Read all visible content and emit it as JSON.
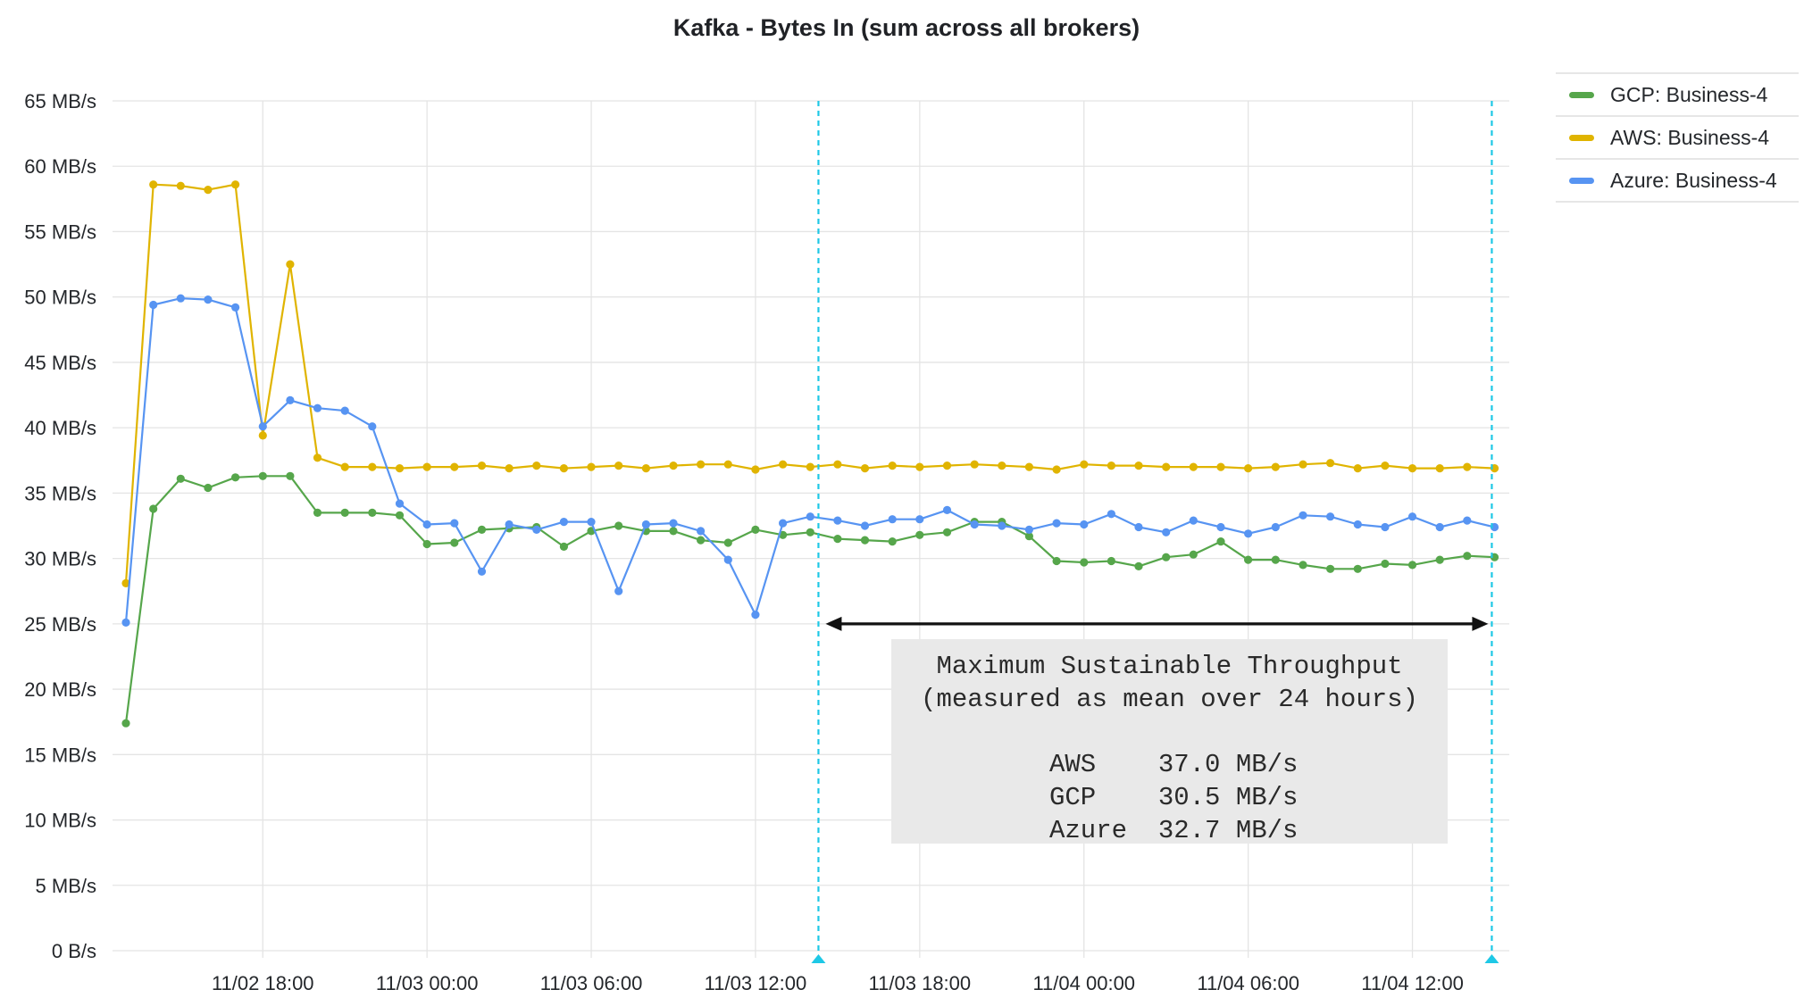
{
  "chart_data": {
    "type": "line",
    "title": "Kafka - Bytes In (sum across all brokers)",
    "xlabel": "",
    "ylabel": "",
    "ylim": [
      0,
      65
    ],
    "yunit": "MB/s",
    "grid": true,
    "legend_position": "right",
    "y_ticks": [
      {
        "value": 0,
        "label": "0 B/s"
      },
      {
        "value": 5,
        "label": "5 MB/s"
      },
      {
        "value": 10,
        "label": "10 MB/s"
      },
      {
        "value": 15,
        "label": "15 MB/s"
      },
      {
        "value": 20,
        "label": "20 MB/s"
      },
      {
        "value": 25,
        "label": "25 MB/s"
      },
      {
        "value": 30,
        "label": "30 MB/s"
      },
      {
        "value": 35,
        "label": "35 MB/s"
      },
      {
        "value": 40,
        "label": "40 MB/s"
      },
      {
        "value": 45,
        "label": "45 MB/s"
      },
      {
        "value": 50,
        "label": "50 MB/s"
      },
      {
        "value": 55,
        "label": "55 MB/s"
      },
      {
        "value": 60,
        "label": "60 MB/s"
      },
      {
        "value": 65,
        "label": "65 MB/s"
      }
    ],
    "x_ticks": [
      {
        "hour": 5,
        "label": "11/02 18:00"
      },
      {
        "hour": 11,
        "label": "11/03 00:00"
      },
      {
        "hour": 17,
        "label": "11/03 06:00"
      },
      {
        "hour": 23,
        "label": "11/03 12:00"
      },
      {
        "hour": 29,
        "label": "11/03 18:00"
      },
      {
        "hour": 35,
        "label": "11/04 00:00"
      },
      {
        "hour": 41,
        "label": "11/04 06:00"
      },
      {
        "hour": 47,
        "label": "11/04 12:00"
      }
    ],
    "x_start": "11/02 13:00",
    "x_interval": "1h",
    "series": [
      {
        "name": "GCP: Business-4",
        "color": "#56a64b",
        "values": [
          17.4,
          33.8,
          36.1,
          35.4,
          36.2,
          36.3,
          36.3,
          33.5,
          33.5,
          33.5,
          33.3,
          31.1,
          31.2,
          32.2,
          32.3,
          32.4,
          30.9,
          32.1,
          32.5,
          32.1,
          32.1,
          31.4,
          31.2,
          32.2,
          31.8,
          32.0,
          31.5,
          31.4,
          31.3,
          31.8,
          32.0,
          32.8,
          32.8,
          31.7,
          29.8,
          29.7,
          29.8,
          29.4,
          30.1,
          30.3,
          31.3,
          29.9,
          29.9,
          29.5,
          29.2,
          29.2,
          29.6,
          29.5,
          29.9,
          30.2,
          30.1
        ]
      },
      {
        "name": "AWS: Business-4",
        "color": "#e0b400",
        "values": [
          28.1,
          58.6,
          58.5,
          58.2,
          58.6,
          39.4,
          52.5,
          37.7,
          37.0,
          37.0,
          36.9,
          37.0,
          37.0,
          37.1,
          36.9,
          37.1,
          36.9,
          37.0,
          37.1,
          36.9,
          37.1,
          37.2,
          37.2,
          36.8,
          37.2,
          37.0,
          37.2,
          36.9,
          37.1,
          37.0,
          37.1,
          37.2,
          37.1,
          37.0,
          36.8,
          37.2,
          37.1,
          37.1,
          37.0,
          37.0,
          37.0,
          36.9,
          37.0,
          37.2,
          37.3,
          36.9,
          37.1,
          36.9,
          36.9,
          37.0,
          36.9
        ]
      },
      {
        "name": "Azure: Business-4",
        "color": "#5794f2",
        "values": [
          25.1,
          49.4,
          49.9,
          49.8,
          49.2,
          40.1,
          42.1,
          41.5,
          41.3,
          40.1,
          34.2,
          32.6,
          32.7,
          29.0,
          32.6,
          32.2,
          32.8,
          32.8,
          27.5,
          32.6,
          32.7,
          32.1,
          29.9,
          25.7,
          32.7,
          33.2,
          32.9,
          32.5,
          33.0,
          33.0,
          33.7,
          32.6,
          32.5,
          32.2,
          32.7,
          32.6,
          33.4,
          32.4,
          32.0,
          32.9,
          32.4,
          31.9,
          32.4,
          33.3,
          33.2,
          32.6,
          32.4,
          33.2,
          32.4,
          32.9,
          32.4
        ]
      }
    ],
    "annotations": {
      "region_start_hour": 25.3,
      "region_end_hour": 49.9,
      "marker_color": "#1ec8e6",
      "arrow_y_value": 25,
      "box_lines": [
        "Maximum Sustainable Throughput",
        "(measured as mean over 24 hours)",
        "",
        "AWS    37.0 MB/s",
        "GCP    30.5 MB/s",
        "Azure  32.7 MB/s"
      ],
      "means": [
        {
          "name": "AWS",
          "value": 37.0
        },
        {
          "name": "GCP",
          "value": 30.5
        },
        {
          "name": "Azure",
          "value": 32.7
        }
      ]
    }
  },
  "legend": {
    "items": [
      {
        "label": "GCP: Business-4",
        "color": "#56a64b"
      },
      {
        "label": "AWS: Business-4",
        "color": "#e0b400"
      },
      {
        "label": "Azure: Business-4",
        "color": "#5794f2"
      }
    ]
  }
}
